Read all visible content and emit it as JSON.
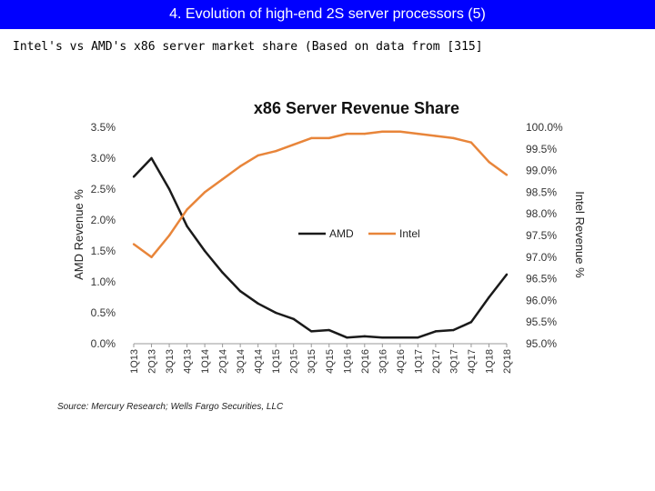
{
  "header": {
    "title": "4. Evolution of high-end 2S server processors (5)"
  },
  "subtitle": "Intel's vs AMD's x86 server market share (Based on data from [315]",
  "source": "Source: Mercury Research; Wells Fargo Securities, LLC",
  "colors": {
    "amd": "#1a1a1a",
    "intel": "#e8853a",
    "title_bar": "#0000ff"
  },
  "chart_data": {
    "type": "line",
    "title": "x86 Server Revenue Share",
    "categories": [
      "1Q13",
      "2Q13",
      "3Q13",
      "4Q13",
      "1Q14",
      "2Q14",
      "3Q14",
      "4Q14",
      "1Q15",
      "2Q15",
      "3Q15",
      "4Q15",
      "1Q16",
      "2Q16",
      "3Q16",
      "4Q16",
      "1Q17",
      "2Q17",
      "3Q17",
      "4Q17",
      "1Q18",
      "2Q18"
    ],
    "ylabel_left": "AMD Revenue %",
    "ylabel_right": "Intel Revenue %",
    "ylim_left": [
      0,
      3.5
    ],
    "ylim_right": [
      95.0,
      100.0
    ],
    "yticks_left": [
      "0.0%",
      "0.5%",
      "1.0%",
      "1.5%",
      "2.0%",
      "2.5%",
      "3.0%",
      "3.5%"
    ],
    "yticks_right": [
      "95.0%",
      "95.5%",
      "96.0%",
      "96.5%",
      "97.0%",
      "97.5%",
      "98.0%",
      "98.5%",
      "99.0%",
      "99.5%",
      "100.0%"
    ],
    "series": [
      {
        "name": "AMD",
        "axis": "left",
        "values": [
          2.7,
          3.0,
          2.5,
          1.9,
          1.5,
          1.15,
          0.85,
          0.65,
          0.5,
          0.4,
          0.2,
          0.22,
          0.1,
          0.12,
          0.1,
          0.1,
          0.1,
          0.2,
          0.22,
          0.35,
          0.75,
          1.12
        ]
      },
      {
        "name": "Intel",
        "axis": "right",
        "values": [
          97.3,
          97.0,
          97.5,
          98.1,
          98.5,
          98.8,
          99.1,
          99.35,
          99.45,
          99.6,
          99.75,
          99.75,
          99.85,
          99.85,
          99.9,
          99.9,
          99.85,
          99.8,
          99.75,
          99.65,
          99.2,
          98.9
        ]
      }
    ],
    "legend": "center",
    "grid": false
  }
}
